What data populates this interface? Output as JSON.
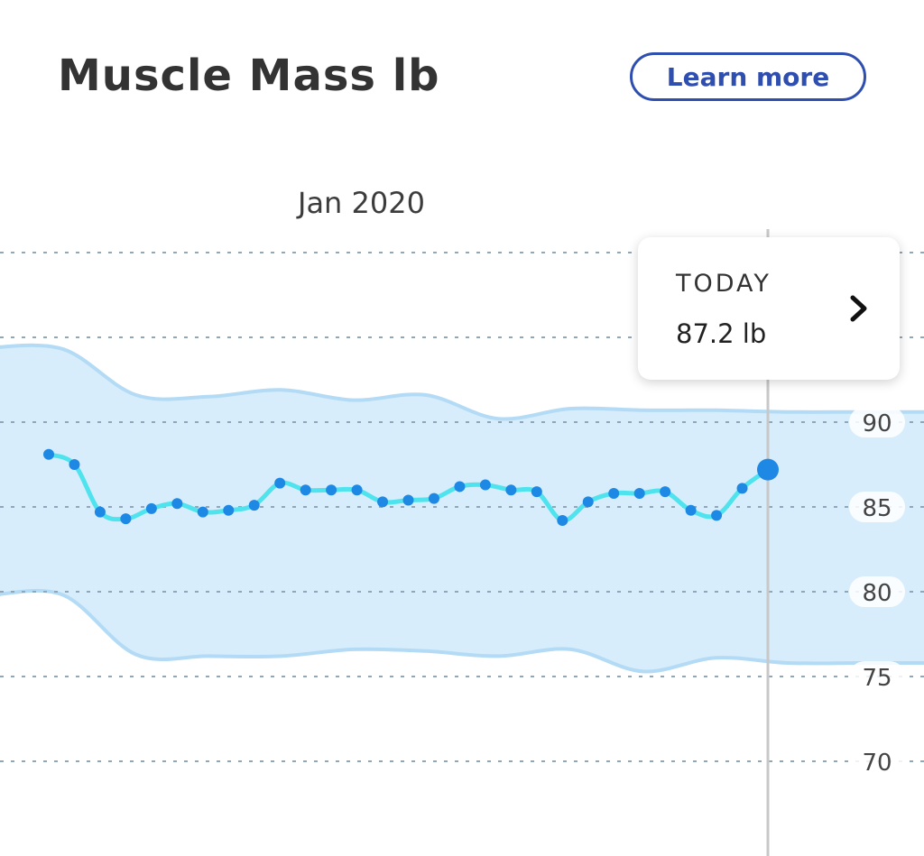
{
  "header": {
    "title": "Muscle Mass lb",
    "learn_more_label": "Learn more"
  },
  "tooltip": {
    "label": "TODAY",
    "value": "87.2 lb"
  },
  "chart_data": {
    "type": "line",
    "title": "Muscle Mass lb",
    "period_label": "Jan 2020",
    "xlabel": "",
    "ylabel": "",
    "ylim": [
      67,
      99
    ],
    "y_ticks": [
      90,
      85,
      80,
      75,
      70
    ],
    "grid": true,
    "series": [
      {
        "values": [
          88.1,
          87.5,
          84.7,
          84.3,
          84.9,
          85.2,
          84.7,
          84.8,
          85.1,
          86.4,
          86.0,
          86.0,
          86.0,
          85.3,
          85.4,
          85.5,
          86.2,
          86.3,
          86.0,
          85.9,
          84.2,
          85.3,
          85.8,
          85.8,
          85.9,
          84.8,
          84.5,
          86.1,
          87.2
        ]
      }
    ],
    "range_band": {
      "upper": [
        94.4,
        94.3,
        91.6,
        91.5,
        91.9,
        91.3,
        91.6,
        90.2,
        90.8,
        90.7,
        90.7,
        90.6,
        90.6,
        90.6
      ],
      "lower": [
        79.8,
        79.8,
        76.3,
        76.2,
        76.2,
        76.6,
        76.5,
        76.2,
        76.6,
        75.3,
        76.1,
        75.8,
        75.8,
        75.8
      ]
    },
    "colors": {
      "line": "#4fe3ee",
      "points": "#1e88e5",
      "band_fill": "#d8edfb",
      "band_edge": "#b3dbf5",
      "grid": "#8fa7b8",
      "cursor": "#c8c8c8"
    }
  }
}
